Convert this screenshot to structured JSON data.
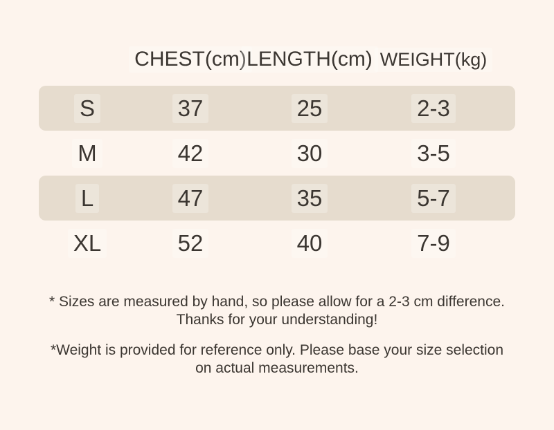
{
  "theme": {
    "background": "#fdf4ed",
    "band": "#e6dcce",
    "text": "#3b3631"
  },
  "chart_data": {
    "type": "table",
    "columns": [
      "CHEST(cm)",
      "LENGTH(cm)",
      "WEIGHT(kg)"
    ],
    "rows": [
      {
        "size": "S",
        "chest": "37",
        "length": "25",
        "weight": "2-3"
      },
      {
        "size": "M",
        "chest": "42",
        "length": "30",
        "weight": "3-5"
      },
      {
        "size": "L",
        "chest": "47",
        "length": "35",
        "weight": "5-7"
      },
      {
        "size": "XL",
        "chest": "52",
        "length": "40",
        "weight": "7-9"
      }
    ],
    "layout": {
      "highlighted_rows": [
        "S",
        "L"
      ],
      "grid": "off",
      "legend": "none"
    }
  },
  "notes": [
    {
      "line1": "* Sizes are measured by hand, so please allow for a 2-3 cm difference.",
      "line2": "Thanks for your understanding!"
    },
    {
      "line1": "*Weight is provided for reference only. Please base your size selection",
      "line2": "on actual measurements."
    }
  ]
}
